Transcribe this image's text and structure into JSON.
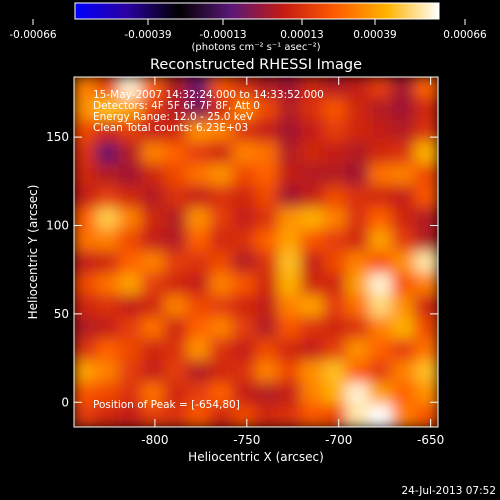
{
  "title": "Reconstructed RHESSI Image",
  "colorbar": {
    "ticks": [
      "-0.00066",
      "-0.00039",
      "-0.00013",
      "0.00013",
      "0.00039",
      "0.00066"
    ],
    "unit_label": "(photons cm⁻² s⁻¹ asec⁻²)",
    "colormap": [
      "#0000ff",
      "#2a00a0",
      "#000000",
      "#5a1878",
      "#c31a12",
      "#ff5a00",
      "#ffb400",
      "#ffffff"
    ]
  },
  "info_lines": [
    "15-May-2007 14:32:24.000 to 14:33:52.000",
    "Detectors: 4F 5F 6F 7F 8F, Att 0",
    "Energy Range: 12.0 - 25.0 keV",
    "Clean     Total counts: 6.23E+03"
  ],
  "peak_text": "Position of Peak = [-654,80]",
  "footer_date": "24-Jul-2013 07:52",
  "chart_data": {
    "type": "heatmap",
    "title": "Reconstructed RHESSI Image",
    "xlabel": "Heliocentric X (arcsec)",
    "ylabel": "Heliocentric Y (arcsec)",
    "xlim": [
      -844,
      -646
    ],
    "ylim": [
      -14,
      184
    ],
    "xticks": [
      -800,
      -750,
      -700,
      -650
    ],
    "yticks": [
      0,
      50,
      100,
      150
    ],
    "xtick_labels": [
      "-800",
      "-750",
      "-700",
      "-650"
    ],
    "ytick_labels": [
      "0",
      "50",
      "100",
      "150"
    ],
    "value_range": [
      -0.00066,
      0.00066
    ],
    "peak": [
      -654,
      80
    ],
    "grid_note": "values approximate, 16x16 grid, row 0 = top",
    "z": [
      [
        0.55,
        0.35,
        0.95,
        0.45,
        0.1,
        -0.1,
        0.4,
        0.25,
        0.1,
        0.05,
        0.2,
        0.1,
        0.15,
        0.3,
        0.05,
        0.45
      ],
      [
        0.6,
        0.75,
        0.65,
        0.3,
        0.1,
        -0.05,
        0.2,
        0.55,
        0.35,
        0.1,
        0.25,
        0.4,
        0.2,
        0.1,
        0.05,
        0.2
      ],
      [
        0.35,
        0.2,
        0.3,
        0.15,
        0.2,
        0.6,
        0.55,
        0.25,
        0.15,
        0.05,
        0.15,
        0.3,
        0.2,
        0.15,
        0.1,
        0.25
      ],
      [
        0.25,
        -0.1,
        0.1,
        0.55,
        0.45,
        0.3,
        0.2,
        0.55,
        0.5,
        0.1,
        0.2,
        0.15,
        0.1,
        0.2,
        0.25,
        0.7
      ],
      [
        0.2,
        0.1,
        0.05,
        0.2,
        0.35,
        0.5,
        0.6,
        0.35,
        0.45,
        0.15,
        0.1,
        0.1,
        0.05,
        0.5,
        0.55,
        0.35
      ],
      [
        0.15,
        0.3,
        0.2,
        0.1,
        0.25,
        0.15,
        0.25,
        0.2,
        0.35,
        0.05,
        0.15,
        0.35,
        0.25,
        0.2,
        0.15,
        0.4
      ],
      [
        0.45,
        0.8,
        0.55,
        0.2,
        0.1,
        0.6,
        0.3,
        0.15,
        0.25,
        0.6,
        0.7,
        0.55,
        0.25,
        0.45,
        0.2,
        0.1
      ],
      [
        0.5,
        0.55,
        0.35,
        0.15,
        0.1,
        0.45,
        0.2,
        0.25,
        0.45,
        0.65,
        0.4,
        0.3,
        0.2,
        0.65,
        0.3,
        0.1
      ],
      [
        0.15,
        0.2,
        0.45,
        0.55,
        0.3,
        0.25,
        0.35,
        0.1,
        0.25,
        0.75,
        0.15,
        0.35,
        0.55,
        0.4,
        0.6,
        0.9
      ],
      [
        0.35,
        0.5,
        0.65,
        0.3,
        0.2,
        0.15,
        0.55,
        0.4,
        0.2,
        0.7,
        0.2,
        0.2,
        0.65,
        0.95,
        0.4,
        0.55
      ],
      [
        0.2,
        0.25,
        0.15,
        0.2,
        0.55,
        0.35,
        0.3,
        0.2,
        0.15,
        0.55,
        0.65,
        0.3,
        0.5,
        0.85,
        0.6,
        0.2
      ],
      [
        0.1,
        0.15,
        0.3,
        0.5,
        0.2,
        0.45,
        0.55,
        0.3,
        0.1,
        0.4,
        0.25,
        0.2,
        0.25,
        0.55,
        0.7,
        0.35
      ],
      [
        0.25,
        0.45,
        0.35,
        0.2,
        0.25,
        0.6,
        0.25,
        0.15,
        0.35,
        0.2,
        0.15,
        0.3,
        0.6,
        0.45,
        0.3,
        0.5
      ],
      [
        0.65,
        0.55,
        0.3,
        0.15,
        0.3,
        0.1,
        0.2,
        0.25,
        0.55,
        0.35,
        0.6,
        0.75,
        0.45,
        0.3,
        0.55,
        0.75
      ],
      [
        0.4,
        0.35,
        0.25,
        0.5,
        0.2,
        0.3,
        0.45,
        0.15,
        0.1,
        0.15,
        0.55,
        0.7,
        0.95,
        0.65,
        0.45,
        0.6
      ],
      [
        0.3,
        0.2,
        0.15,
        0.3,
        0.25,
        0.4,
        0.2,
        0.35,
        0.2,
        0.25,
        0.4,
        0.35,
        0.9,
        1.0,
        0.55,
        0.4
      ]
    ]
  }
}
